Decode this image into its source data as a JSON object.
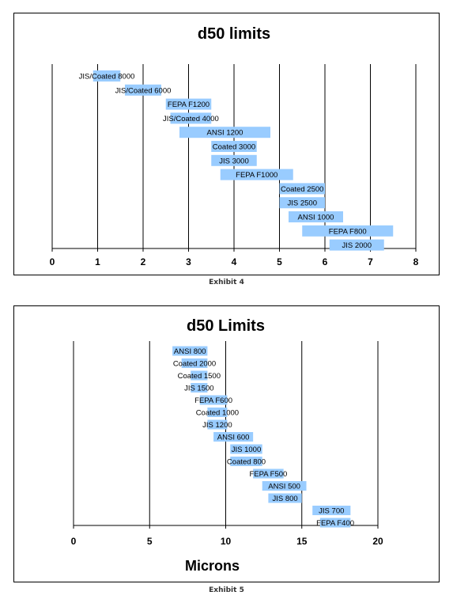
{
  "captions": {
    "chart1": "Exhibit 4",
    "chart2": "Exhibit 5"
  },
  "colors": {
    "bar": "#99ccff",
    "line": "#000000"
  },
  "chart_data": [
    {
      "type": "bar",
      "orientation": "horizontal-range",
      "title": "d50 limits",
      "xlabel": "",
      "xlim": [
        0,
        8
      ],
      "xticks": [
        0,
        1,
        2,
        3,
        4,
        5,
        6,
        7,
        8
      ],
      "grid": "vertical",
      "series": [
        {
          "label": "JIS/Coated 8000",
          "start": 0.9,
          "end": 1.5
        },
        {
          "label": "JIS/Coated 6000",
          "start": 1.6,
          "end": 2.4
        },
        {
          "label": "FEPA F1200",
          "start": 2.5,
          "end": 3.5
        },
        {
          "label": "JIS/Coated 4000",
          "start": 2.6,
          "end": 3.5
        },
        {
          "label": "ANSI 1200",
          "start": 2.8,
          "end": 4.8
        },
        {
          "label": "Coated 3000",
          "start": 3.5,
          "end": 4.5
        },
        {
          "label": "JIS 3000",
          "start": 3.5,
          "end": 4.5
        },
        {
          "label": "FEPA F1000",
          "start": 3.7,
          "end": 5.3
        },
        {
          "label": "Coated 2500",
          "start": 5.0,
          "end": 6.0
        },
        {
          "label": "JIS 2500",
          "start": 5.0,
          "end": 6.0
        },
        {
          "label": "ANSI 1000",
          "start": 5.2,
          "end": 6.4
        },
        {
          "label": "FEPA F800",
          "start": 5.5,
          "end": 7.5
        },
        {
          "label": "JIS 2000",
          "start": 6.1,
          "end": 7.3
        }
      ]
    },
    {
      "type": "bar",
      "orientation": "horizontal-range",
      "title": "d50 Limits",
      "xlabel": "Microns",
      "xlim": [
        0,
        20
      ],
      "xticks": [
        0,
        5,
        10,
        15,
        20
      ],
      "grid": "vertical",
      "series": [
        {
          "label": "ANSI 800",
          "start": 6.5,
          "end": 8.8
        },
        {
          "label": "Coated 2000",
          "start": 7.1,
          "end": 8.8
        },
        {
          "label": "Coated 1500",
          "start": 7.7,
          "end": 8.8
        },
        {
          "label": "JIS 1500",
          "start": 7.7,
          "end": 8.8
        },
        {
          "label": "FEPA F600",
          "start": 8.3,
          "end": 10.1
        },
        {
          "label": "Coated 1000",
          "start": 8.8,
          "end": 10.1
        },
        {
          "label": "JIS 1200",
          "start": 8.8,
          "end": 10.1
        },
        {
          "label": "ANSI 600",
          "start": 9.2,
          "end": 11.8
        },
        {
          "label": "JIS 1000",
          "start": 10.3,
          "end": 12.4
        },
        {
          "label": "Coated 800",
          "start": 10.3,
          "end": 12.4
        },
        {
          "label": "FEPA F500",
          "start": 11.8,
          "end": 13.8
        },
        {
          "label": "ANSI 500",
          "start": 12.4,
          "end": 15.3
        },
        {
          "label": "JIS 800",
          "start": 12.8,
          "end": 15.0
        },
        {
          "label": "JIS 700",
          "start": 15.7,
          "end": 18.2
        },
        {
          "label": "FEPA F400",
          "start": 16.2,
          "end": 18.2
        }
      ]
    }
  ]
}
